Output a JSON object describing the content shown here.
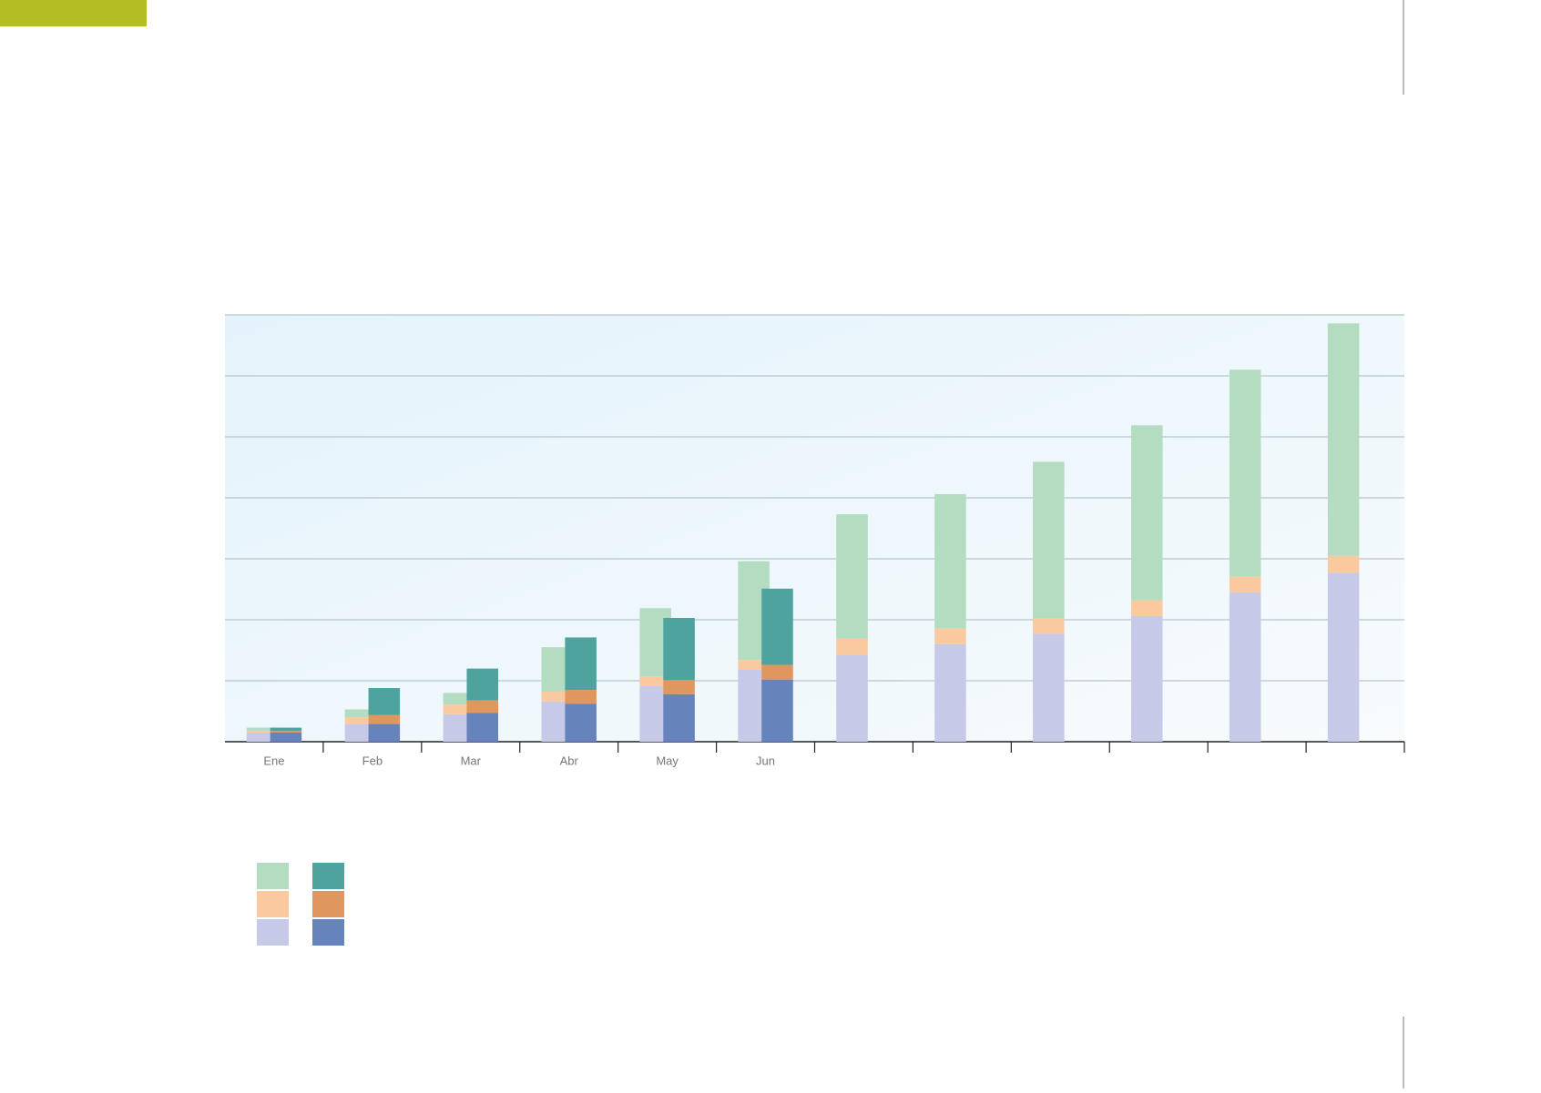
{
  "chart_data": {
    "type": "bar",
    "categories": [
      "Ene",
      "Feb",
      "Mar",
      "Abr",
      "May",
      "Jun",
      null,
      null,
      null,
      null,
      null,
      null
    ],
    "ylim": [
      0,
      7
    ],
    "yticks": [
      0,
      1,
      2,
      3,
      4,
      5,
      6,
      7
    ],
    "grid": true,
    "series": [
      {
        "stack": "left",
        "color": "#c6cae8",
        "values": [
          0.15,
          0.29,
          0.45,
          0.66,
          0.91,
          1.18,
          1.43,
          1.6,
          1.77,
          2.06,
          2.45,
          2.77
        ]
      },
      {
        "stack": "left",
        "color": "#fbc9a0",
        "values": [
          0.03,
          0.11,
          0.16,
          0.16,
          0.16,
          0.16,
          0.26,
          0.26,
          0.26,
          0.26,
          0.26,
          0.28
        ]
      },
      {
        "stack": "left",
        "color": "#b3dcc0",
        "values": [
          0.05,
          0.13,
          0.19,
          0.73,
          1.12,
          1.62,
          2.04,
          2.2,
          2.56,
          2.87,
          3.39,
          3.81
        ]
      },
      {
        "stack": "right",
        "color": "#6783bb",
        "values": [
          0.15,
          0.29,
          0.47,
          0.62,
          0.78,
          1.02,
          null,
          null,
          null,
          null,
          null,
          null
        ]
      },
      {
        "stack": "right",
        "color": "#e0975e",
        "values": [
          0.03,
          0.15,
          0.21,
          0.23,
          0.23,
          0.24,
          null,
          null,
          null,
          null,
          null,
          null
        ]
      },
      {
        "stack": "right",
        "color": "#4ea39e",
        "values": [
          0.05,
          0.44,
          0.52,
          0.86,
          1.02,
          1.25,
          null,
          null,
          null,
          null,
          null,
          null
        ]
      }
    ]
  }
}
